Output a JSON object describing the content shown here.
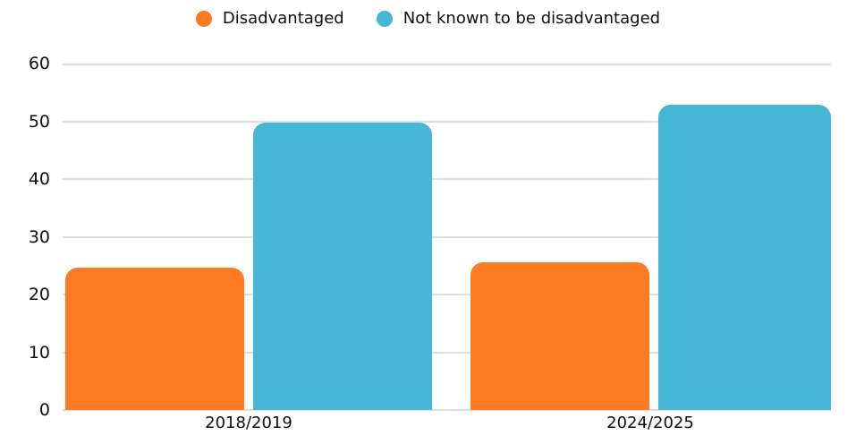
{
  "chart_data": {
    "type": "bar",
    "categories": [
      "2018/2019",
      "2024/2025"
    ],
    "series": [
      {
        "name": "Disadvantaged",
        "color": "#fc7b23",
        "values": [
          24.7,
          25.6
        ]
      },
      {
        "name": "Not known to be disadvantaged",
        "color": "#45b6d6",
        "values": [
          49.8,
          52.8
        ]
      }
    ],
    "xlabel": "",
    "ylabel": "",
    "ylim": [
      0,
      60
    ],
    "yticks": [
      0,
      10,
      20,
      30,
      40,
      50,
      60
    ],
    "grid": "horizontal",
    "legend_position": "top",
    "legend_marker": "circle",
    "colors": {
      "background": "#ffffff",
      "gridline": "#dedede",
      "text": "#0d0d12"
    }
  }
}
